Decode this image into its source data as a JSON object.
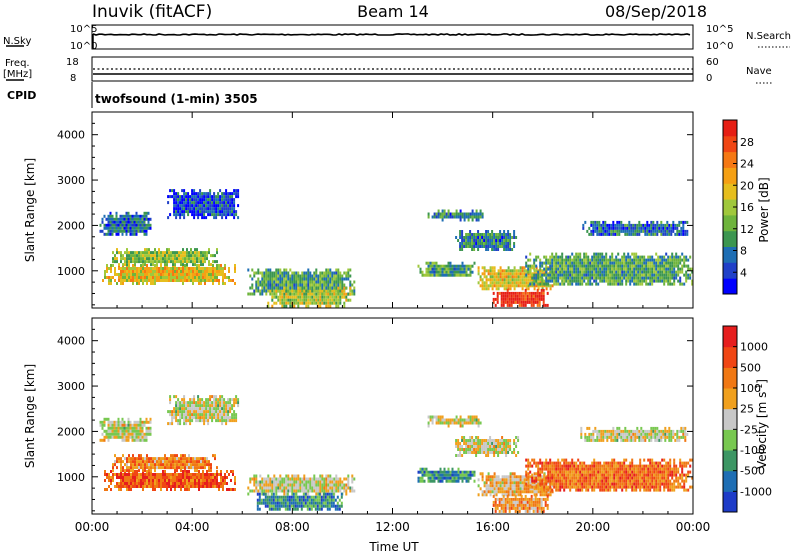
{
  "header": {
    "station": "Inuvik (fitACF)",
    "beam": "Beam 14",
    "date": "08/Sep/2018"
  },
  "panels": {
    "nsky": {
      "label": "N.Sky",
      "right_label": "N.Search",
      "ticks_left": [
        "10^5",
        "10^0"
      ],
      "ticks_right": [
        "10^5",
        "10^0"
      ]
    },
    "freq": {
      "label_line1": "Freq.",
      "label_line2": "[MHz]",
      "ticks_left": [
        "18",
        "8"
      ],
      "right_label": "Nave",
      "ticks_right": [
        "60",
        "0"
      ]
    },
    "cpid": {
      "label": "CPID",
      "text": "twofsound (1-min) 3505"
    }
  },
  "chart_data": [
    {
      "type": "heatmap",
      "name": "power",
      "xlabel": "",
      "ylabel": "Slant Range [km]",
      "x_ticks": [
        "00:00",
        "04:00",
        "08:00",
        "12:00",
        "16:00",
        "20:00",
        "00:00"
      ],
      "y_ticks": [
        "1000",
        "2000",
        "3000",
        "4000"
      ],
      "xlim_hours": [
        0,
        24
      ],
      "ylim_km": [
        180,
        4500
      ],
      "colorbar": {
        "label": "Power [dB]",
        "ticks": [
          "4",
          "8",
          "12",
          "16",
          "20",
          "24",
          "28"
        ],
        "colors": [
          "#0000ff",
          "#2040c8",
          "#1e6eb4",
          "#3c9650",
          "#6eb43c",
          "#a0c83c",
          "#e6be1e",
          "#f5a014",
          "#f57814",
          "#f04614",
          "#e61e14"
        ]
      },
      "regions": [
        {
          "t": [
            0.4,
            5.7
          ],
          "r": [
            750,
            1150
          ],
          "level": 0.6
        },
        {
          "t": [
            0.8,
            5.0
          ],
          "r": [
            1150,
            1500
          ],
          "level": 0.45
        },
        {
          "t": [
            0.3,
            2.3
          ],
          "r": [
            1800,
            2300
          ],
          "level": 0.2
        },
        {
          "t": [
            3.0,
            5.8
          ],
          "r": [
            2200,
            2800
          ],
          "level": 0.15
        },
        {
          "t": [
            6.2,
            10.5
          ],
          "r": [
            500,
            1050
          ],
          "level": 0.35
        },
        {
          "t": [
            7.0,
            10.3
          ],
          "r": [
            250,
            650
          ],
          "level": 0.5
        },
        {
          "t": [
            13.0,
            15.3
          ],
          "r": [
            900,
            1200
          ],
          "level": 0.35
        },
        {
          "t": [
            13.4,
            15.6
          ],
          "r": [
            2150,
            2350
          ],
          "level": 0.25
        },
        {
          "t": [
            14.5,
            17.0
          ],
          "r": [
            1500,
            1900
          ],
          "level": 0.25
        },
        {
          "t": [
            15.4,
            18.4
          ],
          "r": [
            600,
            1100
          ],
          "level": 0.6
        },
        {
          "t": [
            16.0,
            18.2
          ],
          "r": [
            250,
            600
          ],
          "level": 0.95
        },
        {
          "t": [
            17.3,
            24.0
          ],
          "r": [
            700,
            1400
          ],
          "level": 0.35
        },
        {
          "t": [
            19.5,
            23.8
          ],
          "r": [
            1800,
            2100
          ],
          "level": 0.2
        }
      ]
    },
    {
      "type": "heatmap",
      "name": "velocity",
      "xlabel": "Time UT",
      "ylabel": "Slant Range [km]",
      "x_ticks": [
        "00:00",
        "04:00",
        "08:00",
        "12:00",
        "16:00",
        "20:00",
        "00:00"
      ],
      "y_ticks": [
        "1000",
        "2000",
        "3000",
        "4000"
      ],
      "xlim_hours": [
        0,
        24
      ],
      "ylim_km": [
        180,
        4500
      ],
      "colorbar": {
        "label": "Velocity [m s^-1]",
        "ticks": [
          "1000",
          "500",
          "100",
          "25",
          "-25",
          "-100",
          "-500",
          "-1000"
        ],
        "colors": [
          "#1e3cc8",
          "#1e6eb4",
          "#3c9664",
          "#78c850",
          "#c8c8c8",
          "#f0a01e",
          "#f07814",
          "#f04614",
          "#e61e1e"
        ]
      },
      "regions": [
        {
          "t": [
            0.4,
            5.7
          ],
          "r": [
            750,
            1150
          ],
          "level": 0.8
        },
        {
          "t": [
            0.8,
            5.0
          ],
          "r": [
            1150,
            1500
          ],
          "level": 0.7
        },
        {
          "t": [
            0.3,
            2.3
          ],
          "r": [
            1800,
            2300
          ],
          "level": 0.5
        },
        {
          "t": [
            3.0,
            5.8
          ],
          "r": [
            2200,
            2800
          ],
          "level": 0.5
        },
        {
          "t": [
            6.2,
            10.5
          ],
          "r": [
            650,
            1050
          ],
          "level": 0.5
        },
        {
          "t": [
            6.5,
            10.0
          ],
          "r": [
            300,
            650
          ],
          "level": 0.25
        },
        {
          "t": [
            13.0,
            15.3
          ],
          "r": [
            900,
            1200
          ],
          "level": 0.25
        },
        {
          "t": [
            13.4,
            15.6
          ],
          "r": [
            2150,
            2350
          ],
          "level": 0.5
        },
        {
          "t": [
            14.5,
            17.0
          ],
          "r": [
            1500,
            1900
          ],
          "level": 0.5
        },
        {
          "t": [
            15.4,
            18.4
          ],
          "r": [
            600,
            1100
          ],
          "level": 0.6
        },
        {
          "t": [
            16.0,
            18.2
          ],
          "r": [
            250,
            600
          ],
          "level": 0.65
        },
        {
          "t": [
            17.3,
            24.0
          ],
          "r": [
            700,
            1400
          ],
          "level": 0.75
        },
        {
          "t": [
            19.5,
            23.8
          ],
          "r": [
            1800,
            2100
          ],
          "level": 0.5
        }
      ]
    }
  ]
}
